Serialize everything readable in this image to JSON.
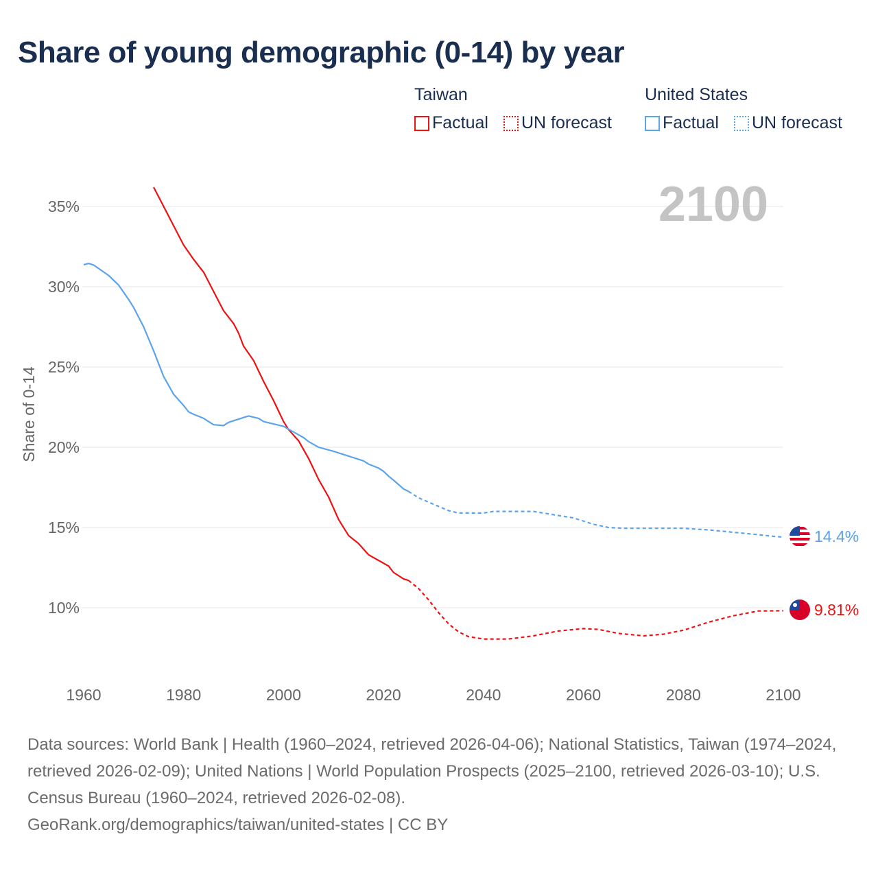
{
  "title": "Share of young demographic (0-14) by year",
  "legend": {
    "groups": [
      {
        "name": "Taiwan",
        "color": "#ee1111",
        "factual": "Factual",
        "forecast": "UN forecast"
      },
      {
        "name": "United States",
        "color": "#5ba3ea",
        "factual": "Factual",
        "forecast": "UN forecast"
      }
    ]
  },
  "year_watermark": "2100",
  "end_labels": {
    "taiwan": "9.81%",
    "us": "14.4%"
  },
  "footer": {
    "sources": "Data sources: World Bank | Health (1960–2024, retrieved 2026-04-06); National Statistics, Taiwan (1974–2024, retrieved 2026-02-09); United Nations | World Population Prospects (2025–2100, retrieved 2026-03-10); U.S. Census Bureau (1960–2024, retrieved 2026-02-08).",
    "credit": "GeoRank.org/demographics/taiwan/united-states | CC BY"
  },
  "chart_data": {
    "type": "line",
    "title": "Share of young demographic (0-14) by year",
    "xlabel": "",
    "ylabel": "Share of 0-14",
    "xlim": [
      1960,
      2100
    ],
    "ylim": [
      7,
      37
    ],
    "xticks": [
      "1960",
      "1980",
      "2000",
      "2020",
      "2040",
      "2060",
      "2080",
      "2100"
    ],
    "yticks": [
      {
        "v": 10,
        "label": "10%"
      },
      {
        "v": 15,
        "label": "15%"
      },
      {
        "v": 20,
        "label": "20%"
      },
      {
        "v": 25,
        "label": "25%"
      },
      {
        "v": 30,
        "label": "30%"
      },
      {
        "v": 35,
        "label": "35%"
      }
    ],
    "grid": true,
    "legend_position": "top-right",
    "series": [
      {
        "name": "Taiwan",
        "color": "#ee1111",
        "factual": [
          [
            1974,
            36.2
          ],
          [
            1976,
            35.0
          ],
          [
            1978,
            33.8
          ],
          [
            1980,
            32.6
          ],
          [
            1982,
            31.7
          ],
          [
            1984,
            30.9
          ],
          [
            1986,
            29.7
          ],
          [
            1988,
            28.5
          ],
          [
            1990,
            27.7
          ],
          [
            1991,
            27.1
          ],
          [
            1992,
            26.3
          ],
          [
            1994,
            25.4
          ],
          [
            1996,
            24.1
          ],
          [
            1998,
            22.9
          ],
          [
            2000,
            21.6
          ],
          [
            2001,
            21.1
          ],
          [
            2003,
            20.4
          ],
          [
            2005,
            19.3
          ],
          [
            2007,
            18.0
          ],
          [
            2009,
            16.9
          ],
          [
            2011,
            15.5
          ],
          [
            2013,
            14.5
          ],
          [
            2015,
            14.0
          ],
          [
            2017,
            13.3
          ],
          [
            2019,
            12.95
          ],
          [
            2021,
            12.6
          ],
          [
            2022,
            12.2
          ],
          [
            2024,
            11.8
          ],
          [
            2025,
            11.7
          ]
        ],
        "forecast": [
          [
            2025,
            11.7
          ],
          [
            2027,
            11.2
          ],
          [
            2029,
            10.5
          ],
          [
            2031,
            9.7
          ],
          [
            2033,
            9.0
          ],
          [
            2035,
            8.5
          ],
          [
            2037,
            8.2
          ],
          [
            2040,
            8.05
          ],
          [
            2045,
            8.05
          ],
          [
            2050,
            8.25
          ],
          [
            2055,
            8.55
          ],
          [
            2060,
            8.7
          ],
          [
            2063,
            8.65
          ],
          [
            2067,
            8.4
          ],
          [
            2072,
            8.25
          ],
          [
            2076,
            8.35
          ],
          [
            2080,
            8.6
          ],
          [
            2085,
            9.1
          ],
          [
            2090,
            9.5
          ],
          [
            2095,
            9.8
          ],
          [
            2100,
            9.81
          ]
        ]
      },
      {
        "name": "United States",
        "color": "#5ba3ea",
        "factual": [
          [
            1960,
            31.37
          ],
          [
            1961,
            31.45
          ],
          [
            1962,
            31.35
          ],
          [
            1965,
            30.7
          ],
          [
            1967,
            30.1
          ],
          [
            1969,
            29.2
          ],
          [
            1970,
            28.7
          ],
          [
            1972,
            27.5
          ],
          [
            1974,
            26.0
          ],
          [
            1976,
            24.4
          ],
          [
            1978,
            23.3
          ],
          [
            1980,
            22.6
          ],
          [
            1981,
            22.2
          ],
          [
            1982,
            22.05
          ],
          [
            1984,
            21.8
          ],
          [
            1986,
            21.4
          ],
          [
            1988,
            21.35
          ],
          [
            1989,
            21.55
          ],
          [
            1992,
            21.85
          ],
          [
            1993,
            21.95
          ],
          [
            1995,
            21.8
          ],
          [
            1996,
            21.6
          ],
          [
            1998,
            21.45
          ],
          [
            2000,
            21.3
          ],
          [
            2002,
            20.95
          ],
          [
            2004,
            20.6
          ],
          [
            2005,
            20.35
          ],
          [
            2007,
            20.0
          ],
          [
            2010,
            19.75
          ],
          [
            2013,
            19.45
          ],
          [
            2016,
            19.15
          ],
          [
            2017,
            18.95
          ],
          [
            2019,
            18.7
          ],
          [
            2020,
            18.5
          ],
          [
            2021,
            18.2
          ],
          [
            2022,
            17.95
          ],
          [
            2024,
            17.4
          ],
          [
            2025,
            17.25
          ]
        ],
        "forecast": [
          [
            2025,
            17.25
          ],
          [
            2027,
            16.85
          ],
          [
            2030,
            16.45
          ],
          [
            2033,
            16.05
          ],
          [
            2035,
            15.9
          ],
          [
            2040,
            15.9
          ],
          [
            2042,
            16.0
          ],
          [
            2050,
            16.0
          ],
          [
            2055,
            15.75
          ],
          [
            2058,
            15.6
          ],
          [
            2062,
            15.2
          ],
          [
            2065,
            15.0
          ],
          [
            2068,
            14.95
          ],
          [
            2080,
            14.95
          ],
          [
            2085,
            14.85
          ],
          [
            2090,
            14.7
          ],
          [
            2095,
            14.55
          ],
          [
            2098,
            14.45
          ],
          [
            2100,
            14.4
          ]
        ]
      }
    ]
  }
}
